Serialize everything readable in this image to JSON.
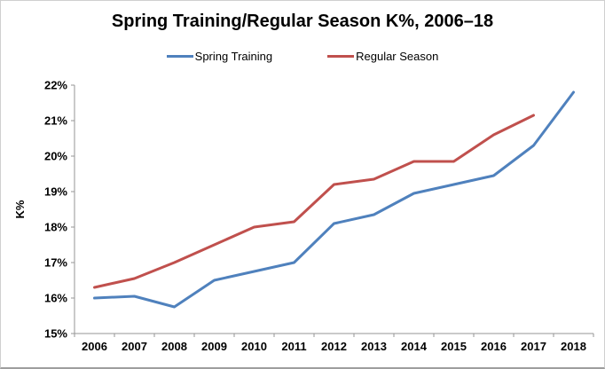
{
  "title": "Spring Training/Regular Season K%, 2006–18",
  "chart_data": {
    "type": "line",
    "title": "Spring Training/Regular Season K%, 2006–18",
    "categories": [
      "2006",
      "2007",
      "2008",
      "2009",
      "2010",
      "2011",
      "2012",
      "2013",
      "2014",
      "2015",
      "2016",
      "2017",
      "2018"
    ],
    "series": [
      {
        "name": "Spring Training",
        "color": "#4F81BD",
        "values": [
          16.0,
          16.05,
          15.75,
          16.5,
          16.75,
          17.0,
          18.1,
          18.35,
          18.95,
          19.2,
          19.45,
          20.3,
          21.8
        ]
      },
      {
        "name": "Regular Season",
        "color": "#C0504D",
        "values": [
          16.3,
          16.55,
          17.0,
          17.5,
          18.0,
          18.15,
          19.2,
          19.35,
          19.85,
          19.85,
          20.6,
          21.15,
          null
        ]
      }
    ],
    "xlabel": "",
    "ylabel": "K%",
    "ylim": [
      15,
      22
    ],
    "ytick_step": 1,
    "ytick_suffix": "%",
    "grid": false,
    "legend_position": "top",
    "axis_color": "#969696",
    "line_width": 3
  }
}
